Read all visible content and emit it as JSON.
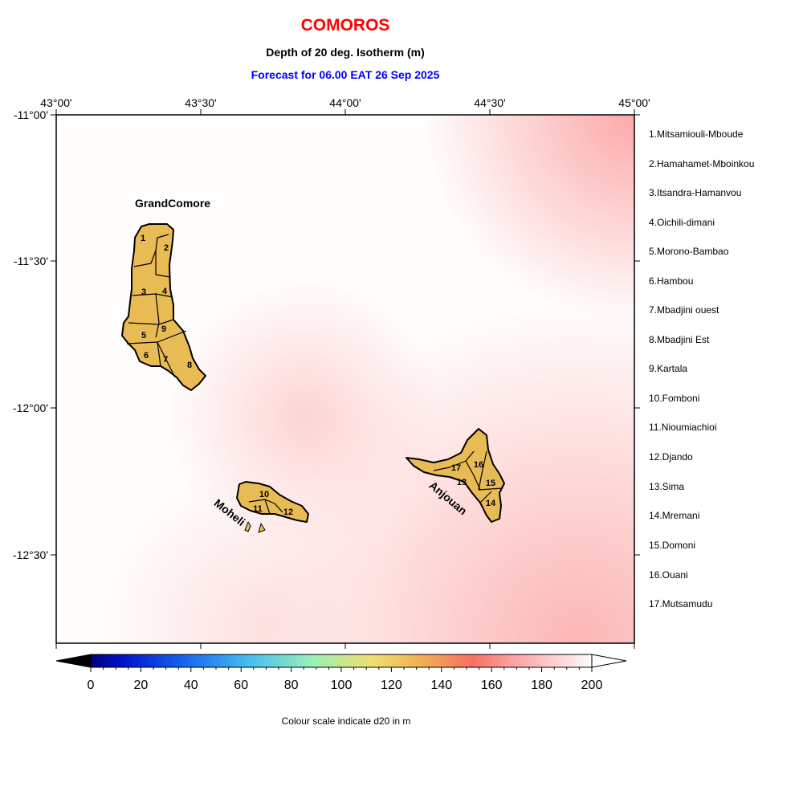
{
  "header": {
    "title": "COMOROS",
    "subtitle": "Depth of 20 deg. Isotherm (m)",
    "forecast": "Forecast for  06.00 EAT 26 Sep 2025",
    "title_color": "#ff0000",
    "forecast_color": "#0000ff"
  },
  "axes": {
    "lon_labels": [
      "43°00'",
      "43°30'",
      "44°00'",
      "44°30'",
      "45°00'"
    ],
    "lat_labels": [
      "-11°00'",
      "-11°30'",
      "-12°00'",
      "-12°30'"
    ]
  },
  "islands": {
    "grand": "GrandComore",
    "moheli": "Moheli",
    "anjouan": "Anjouan",
    "land_color": "#e8bb55"
  },
  "region_numbers": [
    "1",
    "2",
    "3",
    "4",
    "5",
    "6",
    "7",
    "8",
    "9",
    "10",
    "11",
    "12",
    "13",
    "14",
    "15",
    "16",
    "17"
  ],
  "legend": [
    "1.Mitsamiouli-Mboude",
    "2.Hamahamet-Mboinkou",
    "3.Itsandra-Hamanvou",
    "4.Oichili-dimani",
    "5.Morono-Bambao",
    "6.Hambou",
    "7.Mbadjini ouest",
    "8.Mbadjini Est",
    "9.Kartala",
    "10.Fomboni",
    "11.Nioumiachioi",
    "12.Djando",
    "13.Sima",
    "14.Mremani",
    "15.Domoni",
    "16.Ouani",
    "17.Mutsamudu"
  ],
  "colorbar": {
    "labels": [
      "0",
      "20",
      "40",
      "60",
      "80",
      "100",
      "120",
      "140",
      "160",
      "180",
      "200"
    ],
    "caption": "Colour scale indicate d20 in m",
    "min": 0,
    "max": 200
  }
}
